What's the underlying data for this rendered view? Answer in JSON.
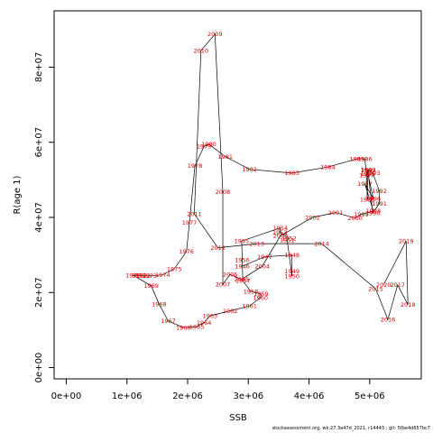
{
  "chart_data": {
    "type": "line",
    "xlabel": "SSB",
    "ylabel": "R(age 1)",
    "xlim": [
      -200000,
      5850000
    ],
    "ylim": [
      -3000000,
      95000000
    ],
    "x_ticks": [
      0,
      1000000,
      2000000,
      3000000,
      4000000,
      5000000
    ],
    "x_tick_labels": [
      "0e+00",
      "1e+06",
      "2e+06",
      "3e+06",
      "4e+06",
      "5e+06"
    ],
    "y_ticks": [
      0,
      20000000,
      40000000,
      60000000,
      80000000
    ],
    "y_tick_labels": [
      "0e+00",
      "2e+07",
      "4e+07",
      "6e+07",
      "8e+07"
    ],
    "grid": false,
    "line_color": "#000000",
    "label_color": "#e00000",
    "points": [
      {
        "label": "1946",
        "x": 2900000,
        "y": 27000000
      },
      {
        "label": "1947",
        "x": 3270000,
        "y": 29500000
      },
      {
        "label": "1948",
        "x": 3720000,
        "y": 30000000
      },
      {
        "label": "1949",
        "x": 3720000,
        "y": 25600000
      },
      {
        "label": "1950",
        "x": 3720000,
        "y": 24300000
      },
      {
        "label": "1951",
        "x": 3640000,
        "y": 34000000
      },
      {
        "label": "1952",
        "x": 3670000,
        "y": 34400000
      },
      {
        "label": "1953",
        "x": 3520000,
        "y": 36000000
      },
      {
        "label": "1954",
        "x": 3530000,
        "y": 37200000
      },
      {
        "label": "1955",
        "x": 2890000,
        "y": 33700000
      },
      {
        "label": "1956",
        "x": 2900000,
        "y": 28700000
      },
      {
        "label": "1957",
        "x": 2910000,
        "y": 23100000
      },
      {
        "label": "1958",
        "x": 3040000,
        "y": 20300000
      },
      {
        "label": "1959",
        "x": 3210000,
        "y": 19600000
      },
      {
        "label": "1960",
        "x": 3200000,
        "y": 18600000
      },
      {
        "label": "1961",
        "x": 3020000,
        "y": 16400000
      },
      {
        "label": "1962",
        "x": 2700000,
        "y": 15100000
      },
      {
        "label": "1963",
        "x": 2370000,
        "y": 13800000
      },
      {
        "label": "1964",
        "x": 2270000,
        "y": 12000000
      },
      {
        "label": "1965",
        "x": 2150000,
        "y": 10900000
      },
      {
        "label": "1966",
        "x": 1930000,
        "y": 10700000
      },
      {
        "label": "1967",
        "x": 1680000,
        "y": 12400000
      },
      {
        "label": "1968",
        "x": 1530000,
        "y": 16900000
      },
      {
        "label": "1969",
        "x": 1400000,
        "y": 21800000
      },
      {
        "label": "1970",
        "x": 1100000,
        "y": 24600000
      },
      {
        "label": "1971",
        "x": 1200000,
        "y": 24600000
      },
      {
        "label": "1972",
        "x": 1270000,
        "y": 24400000
      },
      {
        "label": "1973",
        "x": 1370000,
        "y": 24400000
      },
      {
        "label": "1974",
        "x": 1590000,
        "y": 24700000
      },
      {
        "label": "1975",
        "x": 1780000,
        "y": 26300000
      },
      {
        "label": "1976",
        "x": 1980000,
        "y": 30900000
      },
      {
        "label": "1977",
        "x": 2030000,
        "y": 38600000
      },
      {
        "label": "1978",
        "x": 2120000,
        "y": 53700000
      },
      {
        "label": "1979",
        "x": 2270000,
        "y": 58900000
      },
      {
        "label": "1980",
        "x": 2350000,
        "y": 59500000
      },
      {
        "label": "1981",
        "x": 2620000,
        "y": 56200000
      },
      {
        "label": "1982",
        "x": 3020000,
        "y": 52800000
      },
      {
        "label": "1983",
        "x": 3720000,
        "y": 51800000
      },
      {
        "label": "1984",
        "x": 4310000,
        "y": 53400000
      },
      {
        "label": "1985",
        "x": 4790000,
        "y": 55600000
      },
      {
        "label": "1986",
        "x": 4920000,
        "y": 55600000
      },
      {
        "label": "1987",
        "x": 4950000,
        "y": 51200000
      },
      {
        "label": "1988",
        "x": 4960000,
        "y": 44800000
      },
      {
        "label": "1989",
        "x": 4970000,
        "y": 52500000
      },
      {
        "label": "1990",
        "x": 5050000,
        "y": 41200000
      },
      {
        "label": "1991",
        "x": 5160000,
        "y": 43700000
      },
      {
        "label": "1992",
        "x": 5160000,
        "y": 47000000
      },
      {
        "label": "1993",
        "x": 5050000,
        "y": 51800000
      },
      {
        "label": "1994",
        "x": 4980000,
        "y": 52700000
      },
      {
        "label": "1995",
        "x": 4970000,
        "y": 51600000
      },
      {
        "label": "1996",
        "x": 5060000,
        "y": 45000000
      },
      {
        "label": "1997",
        "x": 4920000,
        "y": 48900000
      },
      {
        "label": "1998",
        "x": 5060000,
        "y": 41700000
      },
      {
        "label": "1999",
        "x": 4860000,
        "y": 40800000
      },
      {
        "label": "2000",
        "x": 4760000,
        "y": 39800000
      },
      {
        "label": "2001",
        "x": 4440000,
        "y": 41300000
      },
      {
        "label": "2002",
        "x": 4060000,
        "y": 40000000
      },
      {
        "label": "2003",
        "x": 3530000,
        "y": 35100000
      },
      {
        "label": "2004",
        "x": 3230000,
        "y": 27000000
      },
      {
        "label": "2005",
        "x": 2890000,
        "y": 23500000
      },
      {
        "label": "2006",
        "x": 2700000,
        "y": 24800000
      },
      {
        "label": "2007",
        "x": 2580000,
        "y": 22200000
      },
      {
        "label": "2008",
        "x": 2580000,
        "y": 46800000
      },
      {
        "label": "2009",
        "x": 2450000,
        "y": 88800000
      },
      {
        "label": "2010",
        "x": 2220000,
        "y": 84400000
      },
      {
        "label": "2011",
        "x": 2110000,
        "y": 40900000
      },
      {
        "label": "2012",
        "x": 2500000,
        "y": 31900000
      },
      {
        "label": "2013",
        "x": 3140000,
        "y": 33000000
      },
      {
        "label": "2014",
        "x": 4210000,
        "y": 33000000
      },
      {
        "label": "2015",
        "x": 5100000,
        "y": 21000000
      },
      {
        "label": "2016",
        "x": 5300000,
        "y": 12800000
      },
      {
        "label": "2017",
        "x": 5460000,
        "y": 22000000
      },
      {
        "label": "2018",
        "x": 5630000,
        "y": 16800000
      },
      {
        "label": "2019",
        "x": 5600000,
        "y": 33700000
      },
      {
        "label": "2020",
        "x": 5230000,
        "y": 22100000
      }
    ]
  },
  "footer": "stockassessment.org, wk:27.3a47d_2021, r14443 ; git: 5fbe4d657bc7"
}
